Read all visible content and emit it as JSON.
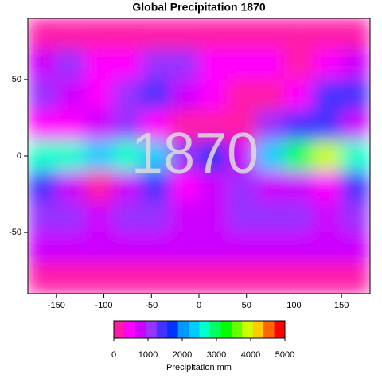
{
  "chart_data": {
    "type": "heatmap",
    "title": "Global Precipitation 1870",
    "watermark": "1870",
    "lon": [
      -165,
      -135,
      -105,
      -75,
      -45,
      -15,
      15,
      45,
      75,
      105,
      135,
      165
    ],
    "lat": [
      80,
      60,
      40,
      20,
      0,
      -20,
      -40,
      -60,
      -80
    ],
    "values": [
      [
        300,
        300,
        300,
        300,
        200,
        300,
        300,
        300,
        300,
        300,
        300,
        300
      ],
      [
        900,
        1200,
        400,
        400,
        1000,
        1100,
        600,
        400,
        400,
        300,
        400,
        800
      ],
      [
        1200,
        800,
        400,
        1000,
        1300,
        700,
        500,
        200,
        300,
        500,
        1300,
        1300
      ],
      [
        600,
        400,
        700,
        1000,
        500,
        200,
        100,
        100,
        1200,
        1500,
        1500,
        900
      ],
      [
        2800,
        2500,
        2200,
        2500,
        2200,
        1200,
        1600,
        800,
        2200,
        3000,
        3800,
        2800
      ],
      [
        1500,
        800,
        300,
        800,
        1300,
        400,
        800,
        1000,
        900,
        700,
        600,
        1500
      ],
      [
        1000,
        1000,
        800,
        1000,
        1000,
        900,
        800,
        1000,
        1100,
        1100,
        900,
        1100
      ],
      [
        900,
        900,
        800,
        800,
        800,
        800,
        800,
        800,
        900,
        900,
        900,
        900
      ],
      [
        200,
        200,
        200,
        200,
        200,
        200,
        200,
        200,
        200,
        200,
        200,
        200
      ]
    ],
    "xlim": [
      -180,
      180
    ],
    "ylim": [
      -90,
      90
    ],
    "xticks": [
      -150,
      -100,
      -50,
      0,
      50,
      100,
      150
    ],
    "yticks": [
      -50,
      0,
      50
    ],
    "colorbar": {
      "title": "Precipitation mm",
      "lim": [
        0,
        5000
      ],
      "ticks": [
        0,
        1000,
        2000,
        3000,
        4000,
        5000
      ],
      "colors": [
        "#ff1aa8",
        "#ff00ff",
        "#cc00ff",
        "#9933ff",
        "#4433ff",
        "#0033ff",
        "#0099ff",
        "#00ccff",
        "#00ffcc",
        "#00ff66",
        "#00ff00",
        "#66ff00",
        "#ccff00",
        "#ffcc00",
        "#ff6600",
        "#ff0000"
      ]
    }
  }
}
